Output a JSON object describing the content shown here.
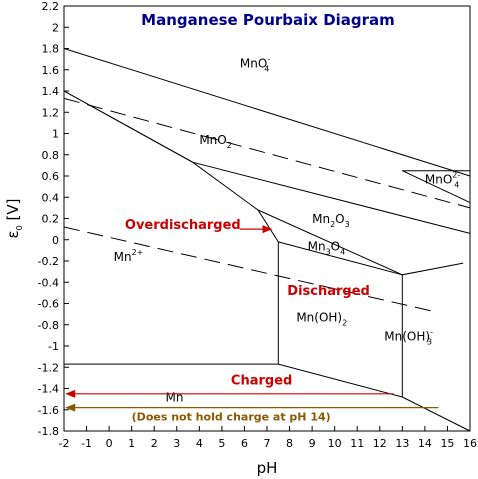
{
  "chart_data": {
    "type": "line",
    "title": "Manganese Pourbaix Diagram",
    "xlabel": "pH",
    "ylabel": "ε0 [V]",
    "xlim": [
      -2,
      16
    ],
    "ylim": [
      -1.8,
      2.2
    ],
    "x_ticks": [
      -2,
      -1,
      0,
      1,
      2,
      3,
      4,
      5,
      6,
      7,
      8,
      9,
      10,
      11,
      12,
      13,
      14,
      15,
      16
    ],
    "y_ticks": [
      -1.8,
      -1.6,
      -1.4,
      -1.2,
      -1.0,
      -0.8,
      -0.6,
      -0.4,
      -0.2,
      0.0,
      0.2,
      0.4,
      0.6,
      0.8,
      1.0,
      1.2,
      1.4,
      1.6,
      1.8,
      2.0,
      2.2
    ],
    "x_tick_labels": [
      "-2",
      "-1",
      "0",
      "1",
      "2",
      "3",
      "4",
      "5",
      "6",
      "7",
      "8",
      "9",
      "10",
      "11",
      "12",
      "13",
      "14",
      "15",
      "16"
    ],
    "y_tick_labels": [
      "-1.8",
      "-1.6",
      "-1.4",
      "-1.2",
      "-1",
      "-0.8",
      "-0.6",
      "-0.4",
      "-0.2",
      "0",
      "0.2",
      "0.4",
      "0.6",
      "0.8",
      "1",
      "1.2",
      "1.4",
      "1.6",
      "1.8",
      "2",
      "2.2"
    ],
    "grid": false,
    "boundaries": [
      {
        "style": "solid",
        "points": [
          [
            -2,
            1.8
          ],
          [
            16,
            0.6
          ]
        ]
      },
      {
        "style": "solid",
        "points": [
          [
            -2,
            1.4
          ],
          [
            3.7,
            0.73
          ]
        ]
      },
      {
        "style": "solid",
        "points": [
          [
            3.7,
            0.73
          ],
          [
            16,
            0.06
          ]
        ]
      },
      {
        "style": "solid",
        "points": [
          [
            -2,
            1.4
          ],
          [
            3.7,
            0.73
          ],
          [
            6.6,
            0.28
          ],
          [
            7.5,
            -0.02
          ],
          [
            7.5,
            -1.17
          ]
        ]
      },
      {
        "style": "solid",
        "points": [
          [
            6.6,
            0.28
          ],
          [
            13,
            -0.33
          ],
          [
            15.7,
            -0.22
          ]
        ]
      },
      {
        "style": "solid",
        "points": [
          [
            7.5,
            -0.02
          ],
          [
            13,
            -0.33
          ]
        ]
      },
      {
        "style": "solid",
        "points": [
          [
            13,
            -0.33
          ],
          [
            13,
            -1.48
          ]
        ]
      },
      {
        "style": "solid",
        "points": [
          [
            -2,
            -1.17
          ],
          [
            7.5,
            -1.17
          ],
          [
            13,
            -1.48
          ],
          [
            16,
            -1.8
          ]
        ]
      },
      {
        "style": "solid",
        "points": [
          [
            13,
            0.65
          ],
          [
            16,
            0.65
          ]
        ]
      },
      {
        "style": "solid",
        "points": [
          [
            13,
            0.65
          ],
          [
            16,
            0.35
          ]
        ]
      },
      {
        "style": "dashed",
        "points": [
          [
            -2,
            1.33
          ],
          [
            16,
            0.3
          ]
        ]
      },
      {
        "style": "dashed",
        "points": [
          [
            -2,
            0.12
          ],
          [
            14.5,
            -0.68
          ]
        ]
      }
    ],
    "species_labels": [
      {
        "base": "MnO",
        "sub": "4",
        "sup": "-",
        "x": 5.8,
        "y": 1.62
      },
      {
        "base": "MnO",
        "sub": "2",
        "sup": "",
        "x": 4.0,
        "y": 0.9
      },
      {
        "base": "MnO",
        "sub": "4",
        "sup": "2-",
        "x": 14.0,
        "y": 0.53
      },
      {
        "base": "Mn",
        "sub": "2",
        "sup": "",
        "tail": "O",
        "tail_sub": "3",
        "x": 9.0,
        "y": 0.16
      },
      {
        "base": "Mn",
        "sub": "3",
        "sup": "",
        "tail": "O",
        "tail_sub": "4",
        "x": 8.8,
        "y": -0.1
      },
      {
        "base": "Mn",
        "sub": "",
        "sup": "2+",
        "x": 0.2,
        "y": -0.2
      },
      {
        "base": "Mn(OH)",
        "sub": "2",
        "sup": "",
        "x": 8.3,
        "y": -0.77
      },
      {
        "base": "Mn(OH)",
        "sub": "3",
        "sup": "-",
        "x": 12.2,
        "y": -0.95
      },
      {
        "base": "Mn",
        "sub": "",
        "sup": "",
        "x": 2.5,
        "y": -1.52
      }
    ],
    "annotations": [
      {
        "text": "Overdischarged",
        "color": "#cc0000",
        "x": 0.7,
        "y": 0.1
      },
      {
        "text": "Discharged",
        "color": "#cc0000",
        "x": 7.9,
        "y": -0.52
      },
      {
        "text": "Charged",
        "color": "#cc0000",
        "x": 5.4,
        "y": -1.36
      },
      {
        "text": "(Does not hold charge at pH 14)",
        "color": "#8b5a00",
        "x": 1.0,
        "y": -1.7
      }
    ],
    "arrows": [
      {
        "color": "#cc0000",
        "from": [
          5.8,
          0.1
        ],
        "to": [
          7.2,
          0.1
        ]
      },
      {
        "color": "#cc0000",
        "from": [
          12.6,
          -1.45
        ],
        "to": [
          -1.9,
          -1.45
        ]
      },
      {
        "color": "#8b5a00",
        "from": [
          14.6,
          -1.58
        ],
        "to": [
          -1.9,
          -1.58
        ]
      }
    ],
    "colors": {
      "title": "#00008b",
      "red": "#cc0000",
      "brown": "#8b5a00",
      "line": "#000000"
    }
  }
}
